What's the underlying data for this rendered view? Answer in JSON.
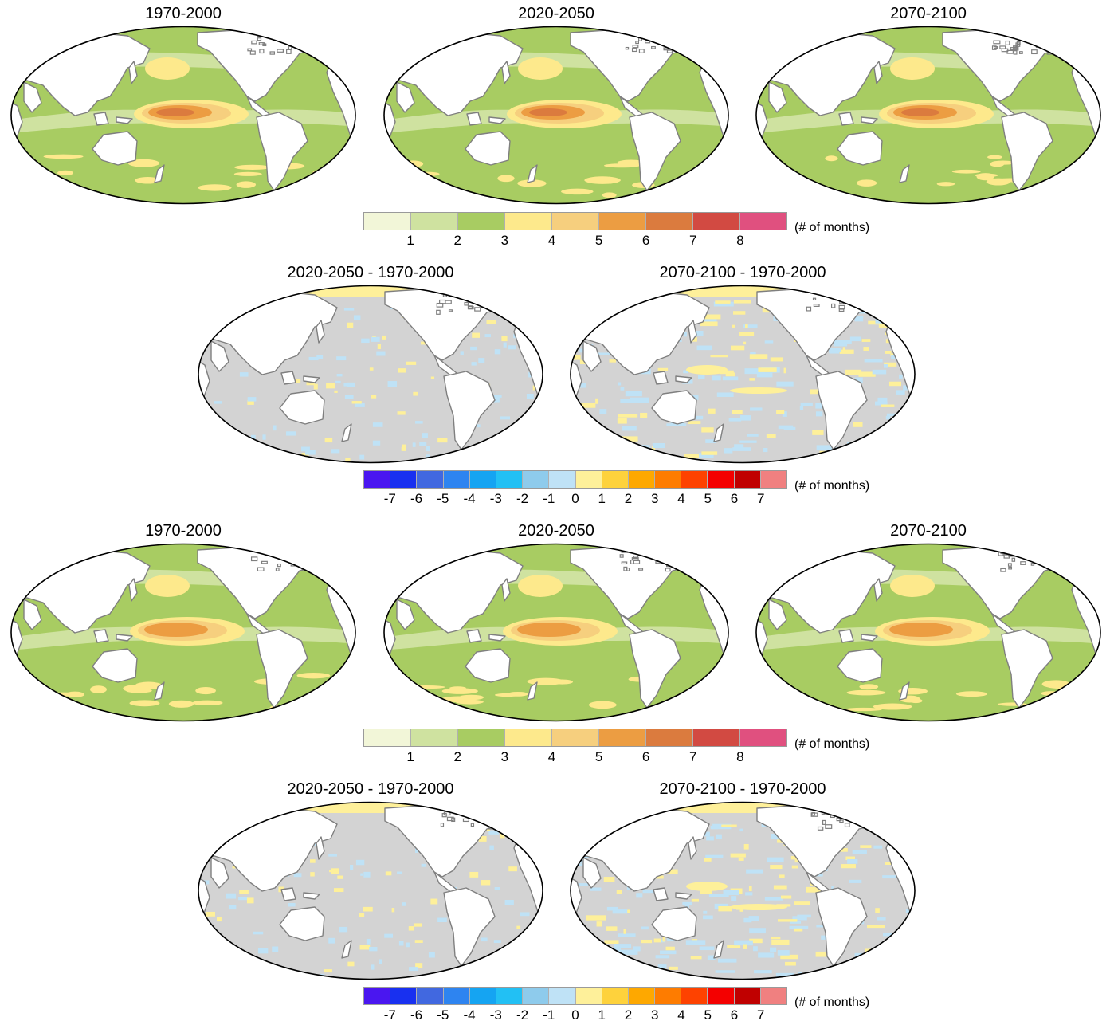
{
  "absolute_titles": [
    "1970-2000",
    "2020-2050",
    "2070-2100"
  ],
  "difference_titles": [
    "2020-2050 - 1970-2000",
    "2070-2100 - 1970-2000"
  ],
  "absolute_colorbar": {
    "colors": [
      "#f2f6d8",
      "#cfe2a0",
      "#a8cc62",
      "#fde98c",
      "#f6cf7e",
      "#ec9d42",
      "#db7b3e",
      "#d24a42",
      "#e0507f"
    ],
    "ticks": [
      "1",
      "2",
      "3",
      "4",
      "5",
      "6",
      "7",
      "8"
    ],
    "unit": "(# of months)"
  },
  "difference_colorbar": {
    "colors": [
      "#4a16f0",
      "#1830f0",
      "#4168e0",
      "#2e84f0",
      "#15a4f2",
      "#22c0f4",
      "#8ecbec",
      "#bfe2f6",
      "#fef09a",
      "#fed23c",
      "#fea800",
      "#fe7c00",
      "#fe4200",
      "#f40000",
      "#c00000",
      "#f08080"
    ],
    "ticks": [
      "-7",
      "-6",
      "-5",
      "-4",
      "-3",
      "-2",
      "-1",
      "0",
      "1",
      "2",
      "3",
      "4",
      "5",
      "6",
      "7"
    ],
    "unit": "(# of months)"
  },
  "map_colors": {
    "land": "#ffffff",
    "coast": "#7f7f7f",
    "frame": "#000000",
    "neutral": "#d3d3d3"
  }
}
